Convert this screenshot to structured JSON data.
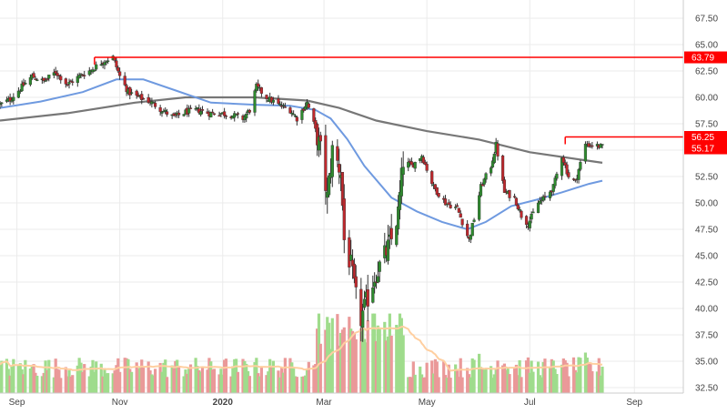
{
  "chart_data": {
    "type": "candlestick",
    "title": "",
    "xlabel": "",
    "ylabel": "",
    "ylim": [
      31.5,
      68.5
    ],
    "y_ticks": [
      32.5,
      35.0,
      37.5,
      40.0,
      42.5,
      45.0,
      47.5,
      50.0,
      52.5,
      55.0,
      57.5,
      60.0,
      62.5,
      65.0,
      67.5
    ],
    "y_tick_labels": [
      "32.50",
      "35.00",
      "37.50",
      "40.00",
      "42.50",
      "45.00",
      "47.50",
      "50.00",
      "52.50",
      "55.00",
      "57.50",
      "60.00",
      "62.50",
      "65.00",
      "67.50"
    ],
    "x_start": "2019-08-22",
    "x_end": "2020-09-30",
    "x_ticks": [
      {
        "date": "2019-09-01",
        "label": "Sep",
        "bold": false
      },
      {
        "date": "2019-11-01",
        "label": "Nov",
        "bold": false
      },
      {
        "date": "2020-01-01",
        "label": "2020",
        "bold": true
      },
      {
        "date": "2020-03-01",
        "label": "Mar",
        "bold": false
      },
      {
        "date": "2020-05-01",
        "label": "May",
        "bold": false
      },
      {
        "date": "2020-07-01",
        "label": "Jul",
        "bold": false
      },
      {
        "date": "2020-09-01",
        "label": "Sep",
        "bold": false
      }
    ],
    "grid": true,
    "legend": "none",
    "price_path": [
      [
        "2019-08-22",
        59.3
      ],
      [
        "2019-08-28",
        59.8
      ],
      [
        "2019-09-04",
        61.0
      ],
      [
        "2019-09-10",
        62.0
      ],
      [
        "2019-09-17",
        61.5
      ],
      [
        "2019-09-24",
        62.4
      ],
      [
        "2019-10-01",
        61.2
      ],
      [
        "2019-10-08",
        62.0
      ],
      [
        "2019-10-15",
        62.6
      ],
      [
        "2019-10-22",
        63.4
      ],
      [
        "2019-10-28",
        63.8
      ],
      [
        "2019-11-01",
        62.0
      ],
      [
        "2019-11-06",
        60.5
      ],
      [
        "2019-11-12",
        60.0
      ],
      [
        "2019-11-19",
        59.6
      ],
      [
        "2019-11-26",
        58.8
      ],
      [
        "2019-12-03",
        58.1
      ],
      [
        "2019-12-10",
        58.6
      ],
      [
        "2019-12-17",
        58.8
      ],
      [
        "2019-12-24",
        58.5
      ],
      [
        "2019-12-31",
        58.5
      ],
      [
        "2020-01-07",
        58.3
      ],
      [
        "2020-01-13",
        58.0
      ],
      [
        "2020-01-17",
        58.8
      ],
      [
        "2020-01-21",
        61.0
      ],
      [
        "2020-01-27",
        60.0
      ],
      [
        "2020-02-03",
        59.3
      ],
      [
        "2020-02-10",
        58.8
      ],
      [
        "2020-02-14",
        58.0
      ],
      [
        "2020-02-20",
        59.5
      ],
      [
        "2020-02-24",
        57.5
      ],
      [
        "2020-02-28",
        55.0
      ],
      [
        "2020-03-03",
        50.5
      ],
      [
        "2020-03-06",
        55.0
      ],
      [
        "2020-03-11",
        53.0
      ],
      [
        "2020-03-13",
        46.5
      ],
      [
        "2020-03-17",
        44.0
      ],
      [
        "2020-03-20",
        41.0
      ],
      [
        "2020-03-23",
        39.0
      ],
      [
        "2020-03-26",
        40.5
      ],
      [
        "2020-03-31",
        43.0
      ],
      [
        "2020-04-06",
        45.0
      ],
      [
        "2020-04-10",
        46.5
      ],
      [
        "2020-04-14",
        49.0
      ],
      [
        "2020-04-17",
        54.0
      ],
      [
        "2020-04-22",
        53.5
      ],
      [
        "2020-04-28",
        54.5
      ],
      [
        "2020-05-05",
        51.5
      ],
      [
        "2020-05-12",
        50.0
      ],
      [
        "2020-05-19",
        49.5
      ],
      [
        "2020-05-26",
        46.5
      ],
      [
        "2020-05-29",
        48.5
      ],
      [
        "2020-06-02",
        51.5
      ],
      [
        "2020-06-08",
        53.5
      ],
      [
        "2020-06-11",
        55.5
      ],
      [
        "2020-06-16",
        51.0
      ],
      [
        "2020-06-22",
        50.5
      ],
      [
        "2020-06-26",
        48.8
      ],
      [
        "2020-06-30",
        48.0
      ],
      [
        "2020-07-06",
        50.0
      ],
      [
        "2020-07-10",
        50.5
      ],
      [
        "2020-07-15",
        51.5
      ],
      [
        "2020-07-20",
        54.5
      ],
      [
        "2020-07-24",
        52.5
      ],
      [
        "2020-07-28",
        52.0
      ],
      [
        "2020-08-03",
        55.5
      ],
      [
        "2020-08-07",
        55.5
      ],
      [
        "2020-08-13",
        55.3
      ]
    ],
    "series": [
      {
        "style": "line",
        "color": "#6f9ae0",
        "points": [
          [
            "2019-08-22",
            59.0
          ],
          [
            "2019-09-15",
            59.6
          ],
          [
            "2019-10-10",
            60.5
          ],
          [
            "2019-10-30",
            61.7
          ],
          [
            "2019-11-15",
            61.7
          ],
          [
            "2019-12-05",
            60.6
          ],
          [
            "2019-12-25",
            59.5
          ],
          [
            "2020-01-20",
            59.3
          ],
          [
            "2020-02-10",
            59.2
          ],
          [
            "2020-02-25",
            58.8
          ],
          [
            "2020-03-05",
            58.0
          ],
          [
            "2020-03-15",
            56.0
          ],
          [
            "2020-03-25",
            53.5
          ],
          [
            "2020-04-10",
            50.5
          ],
          [
            "2020-04-25",
            49.2
          ],
          [
            "2020-05-10",
            48.2
          ],
          [
            "2020-05-25",
            47.5
          ],
          [
            "2020-06-05",
            48.2
          ],
          [
            "2020-06-20",
            49.7
          ],
          [
            "2020-07-05",
            50.3
          ],
          [
            "2020-07-20",
            51.0
          ],
          [
            "2020-08-05",
            51.8
          ],
          [
            "2020-08-13",
            52.1
          ]
        ]
      },
      {
        "style": "line",
        "color": "#777777",
        "points": [
          [
            "2019-08-22",
            57.8
          ],
          [
            "2019-10-01",
            58.5
          ],
          [
            "2019-11-10",
            59.5
          ],
          [
            "2019-12-10",
            60.0
          ],
          [
            "2020-01-20",
            60.0
          ],
          [
            "2020-02-20",
            59.7
          ],
          [
            "2020-03-10",
            59.0
          ],
          [
            "2020-04-01",
            57.8
          ],
          [
            "2020-05-01",
            56.8
          ],
          [
            "2020-06-01",
            56.0
          ],
          [
            "2020-07-01",
            54.8
          ],
          [
            "2020-08-13",
            53.8
          ]
        ]
      }
    ],
    "levels": [
      {
        "value": 63.79,
        "label": "63.79",
        "start": "2019-10-17",
        "color": "#ff0000"
      },
      {
        "value": 56.25,
        "label": "56.25",
        "start": "2020-07-22",
        "color": "#ff0000"
      }
    ],
    "last_price": {
      "value": 55.17,
      "label": "55.17",
      "color": "#ff0000"
    },
    "volume": {
      "color_up": "#9fdc8c",
      "color_down": "#ea9999",
      "ma_color": "#ffcfa0",
      "note_unitless": true
    }
  }
}
